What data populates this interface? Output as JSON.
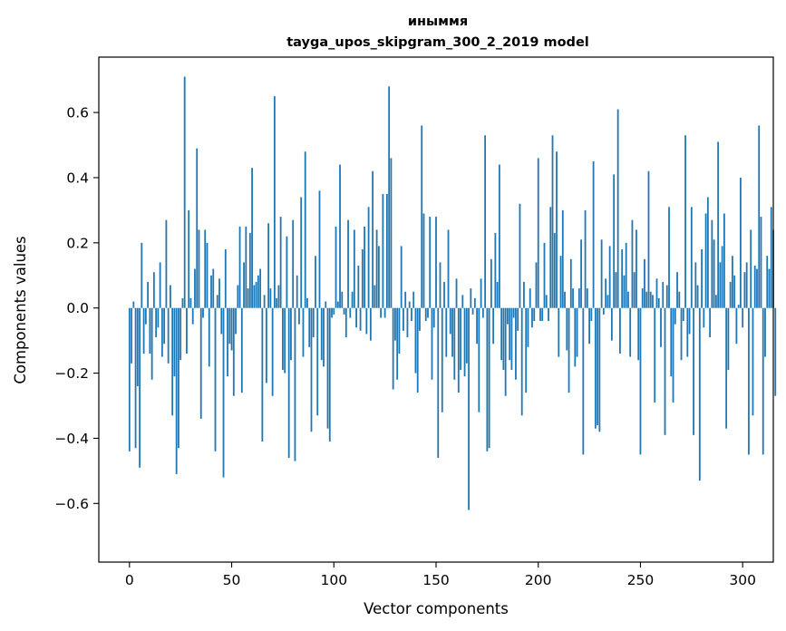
{
  "chart_data": {
    "type": "bar",
    "title": "иныммя",
    "title_lines": [
      "иныммя",
      "tayga_upos_skipgram_300_2_2019 model"
    ],
    "xlabel": "Vector components",
    "ylabel": "Components values",
    "xlim": [
      -15,
      315
    ],
    "ylim": [
      -0.78,
      0.77
    ],
    "xticks": [
      0,
      50,
      100,
      150,
      200,
      250,
      300
    ],
    "xtick_labels": [
      "0",
      "50",
      "100",
      "150",
      "200",
      "250",
      "300"
    ],
    "yticks": [
      -0.6,
      -0.4,
      -0.2,
      0.0,
      0.2,
      0.4,
      0.6
    ],
    "ytick_labels": [
      "−0.6",
      "−0.4",
      "−0.2",
      "0.0",
      "0.2",
      "0.4",
      "0.6"
    ],
    "color": "#1f77b4",
    "grid": false,
    "values": [
      -0.44,
      -0.17,
      0.02,
      -0.43,
      -0.24,
      -0.49,
      0.2,
      -0.14,
      -0.05,
      0.08,
      -0.14,
      -0.22,
      0.11,
      -0.09,
      -0.06,
      0.14,
      -0.15,
      -0.11,
      0.27,
      -0.17,
      0.07,
      -0.33,
      -0.21,
      -0.51,
      -0.43,
      -0.16,
      0.03,
      0.71,
      -0.14,
      0.3,
      0.03,
      -0.05,
      0.12,
      0.49,
      0.24,
      -0.34,
      -0.03,
      0.24,
      0.2,
      -0.18,
      0.1,
      0.12,
      -0.44,
      0.04,
      0.09,
      -0.08,
      -0.52,
      0.18,
      -0.21,
      -0.11,
      -0.13,
      -0.27,
      -0.08,
      0.07,
      0.25,
      -0.26,
      0.14,
      0.25,
      0.06,
      0.23,
      0.43,
      0.07,
      0.08,
      0.1,
      0.12,
      -0.41,
      0.04,
      -0.23,
      0.26,
      0.06,
      -0.27,
      0.65,
      0.03,
      0.07,
      0.28,
      -0.19,
      -0.2,
      0.22,
      -0.46,
      -0.16,
      0.27,
      -0.47,
      0.1,
      -0.05,
      0.34,
      -0.15,
      0.48,
      0.03,
      -0.12,
      -0.38,
      -0.09,
      0.16,
      -0.33,
      0.36,
      -0.16,
      -0.18,
      0.02,
      -0.37,
      -0.41,
      -0.03,
      -0.02,
      0.25,
      0.02,
      0.44,
      0.05,
      -0.02,
      -0.09,
      0.27,
      -0.03,
      0.05,
      0.24,
      -0.06,
      0.13,
      -0.07,
      0.18,
      0.25,
      -0.08,
      0.31,
      -0.1,
      0.42,
      0.07,
      0.24,
      0.19,
      -0.03,
      0.35,
      -0.03,
      0.35,
      0.68,
      0.46,
      -0.25,
      -0.1,
      -0.22,
      -0.14,
      0.19,
      -0.07,
      0.05,
      -0.09,
      0.02,
      -0.04,
      0.05,
      -0.2,
      -0.26,
      -0.07,
      0.56,
      0.29,
      -0.04,
      -0.03,
      0.28,
      -0.22,
      -0.06,
      0.28,
      -0.46,
      0.14,
      -0.32,
      0.08,
      -0.15,
      0.24,
      -0.08,
      -0.15,
      -0.22,
      0.09,
      -0.26,
      -0.19,
      0.04,
      -0.21,
      -0.17,
      -0.62,
      0.06,
      -0.02,
      0.03,
      -0.11,
      -0.32,
      0.09,
      -0.03,
      0.53,
      -0.44,
      -0.43,
      0.15,
      -0.11,
      0.23,
      0.08,
      0.44,
      -0.16,
      -0.19,
      -0.27,
      -0.05,
      -0.16,
      -0.19,
      -0.03,
      -0.22,
      -0.07,
      0.32,
      -0.33,
      0.08,
      -0.26,
      -0.12,
      0.06,
      -0.06,
      -0.04,
      0.14,
      0.46,
      -0.04,
      -0.04,
      0.2,
      0.04,
      -0.04,
      0.31,
      0.53,
      0.23,
      0.48,
      -0.15,
      0.16,
      0.3,
      0.05,
      -0.13,
      -0.26,
      0.15,
      0.06,
      -0.18,
      -0.15,
      0.06,
      0.21,
      -0.45,
      0.3,
      0.06,
      -0.11,
      -0.04,
      0.45,
      -0.37,
      -0.36,
      -0.38,
      0.21,
      -0.02,
      0.09,
      0.04,
      0.19,
      -0.1,
      0.41,
      0.11,
      0.61,
      -0.14,
      0.18,
      0.1,
      0.2,
      0.05,
      -0.15,
      0.27,
      0.11,
      0.24,
      -0.16,
      -0.45,
      0.06,
      0.15,
      0.05,
      0.42,
      0.05,
      0.04,
      -0.29,
      0.09,
      0.03,
      -0.12,
      0.08,
      -0.39,
      0.07,
      0.31,
      -0.21,
      -0.29,
      -0.05,
      0.11,
      0.05,
      -0.16,
      -0.04,
      0.53,
      -0.15,
      -0.08,
      0.31,
      -0.39,
      0.14,
      0.07,
      -0.53,
      0.18,
      -0.06,
      0.29,
      0.34,
      -0.09,
      0.27,
      0.21,
      0.04,
      0.51,
      0.14,
      0.19,
      0.29,
      -0.37,
      -0.19,
      0.08,
      0.16,
      0.1,
      -0.11,
      0.01,
      0.4,
      -0.06,
      0.11,
      0.14,
      -0.45,
      0.24,
      -0.33,
      0.13,
      0.12,
      0.56,
      0.28,
      -0.45,
      -0.15,
      0.16,
      0.12,
      0.31,
      0.24,
      -0.27
    ]
  }
}
